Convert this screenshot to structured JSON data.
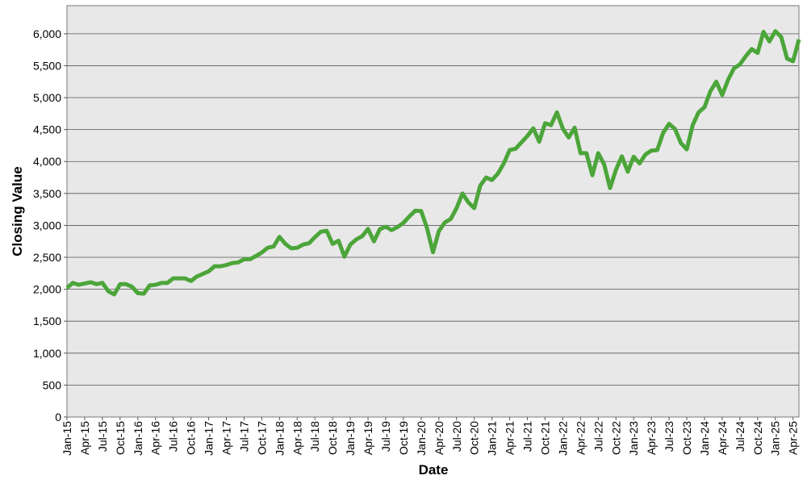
{
  "chart_data": {
    "type": "line",
    "x_label": "Date",
    "y_label": "Closing Value",
    "x": [
      "Jan-15",
      "Feb-15",
      "Mar-15",
      "Apr-15",
      "May-15",
      "Jun-15",
      "Jul-15",
      "Aug-15",
      "Sep-15",
      "Oct-15",
      "Nov-15",
      "Dec-15",
      "Jan-16",
      "Feb-16",
      "Mar-16",
      "Apr-16",
      "May-16",
      "Jun-16",
      "Jul-16",
      "Aug-16",
      "Sep-16",
      "Oct-16",
      "Nov-16",
      "Dec-16",
      "Jan-17",
      "Feb-17",
      "Mar-17",
      "Apr-17",
      "May-17",
      "Jun-17",
      "Jul-17",
      "Aug-17",
      "Sep-17",
      "Oct-17",
      "Nov-17",
      "Dec-17",
      "Jan-18",
      "Feb-18",
      "Mar-18",
      "Apr-18",
      "May-18",
      "Jun-18",
      "Jul-18",
      "Aug-18",
      "Sep-18",
      "Oct-18",
      "Nov-18",
      "Dec-18",
      "Jan-19",
      "Feb-19",
      "Mar-19",
      "Apr-19",
      "May-19",
      "Jun-19",
      "Jul-19",
      "Aug-19",
      "Sep-19",
      "Oct-19",
      "Nov-19",
      "Dec-19",
      "Jan-20",
      "Feb-20",
      "Mar-20",
      "Apr-20",
      "May-20",
      "Jun-20",
      "Jul-20",
      "Aug-20",
      "Sep-20",
      "Oct-20",
      "Nov-20",
      "Dec-20",
      "Jan-21",
      "Feb-21",
      "Mar-21",
      "Apr-21",
      "May-21",
      "Jun-21",
      "Jul-21",
      "Aug-21",
      "Sep-21",
      "Oct-21",
      "Nov-21",
      "Dec-21",
      "Jan-22",
      "Feb-22",
      "Mar-22",
      "Apr-22",
      "May-22",
      "Jun-22",
      "Jul-22",
      "Aug-22",
      "Sep-22",
      "Oct-22",
      "Nov-22",
      "Dec-22",
      "Jan-23",
      "Feb-23",
      "Mar-23",
      "Apr-23",
      "May-23",
      "Jun-23",
      "Jul-23",
      "Aug-23",
      "Sep-23",
      "Oct-23",
      "Nov-23",
      "Dec-23",
      "Jan-24",
      "Feb-24",
      "Mar-24",
      "Apr-24",
      "May-24",
      "Jun-24",
      "Jul-24",
      "Aug-24",
      "Sep-24",
      "Oct-24",
      "Nov-24",
      "Dec-24",
      "Jan-25",
      "Feb-25",
      "Mar-25",
      "Apr-25",
      "May-25"
    ],
    "values": [
      2020,
      2100,
      2070,
      2090,
      2110,
      2080,
      2100,
      1970,
      1920,
      2080,
      2080,
      2040,
      1940,
      1930,
      2060,
      2070,
      2100,
      2100,
      2170,
      2170,
      2170,
      2130,
      2200,
      2240,
      2280,
      2360,
      2360,
      2380,
      2410,
      2420,
      2470,
      2470,
      2520,
      2575,
      2650,
      2670,
      2820,
      2710,
      2640,
      2650,
      2700,
      2720,
      2815,
      2900,
      2915,
      2710,
      2760,
      2510,
      2700,
      2780,
      2830,
      2945,
      2750,
      2940,
      2980,
      2925,
      2975,
      3040,
      3140,
      3230,
      3225,
      2955,
      2580,
      2910,
      3045,
      3100,
      3270,
      3500,
      3360,
      3270,
      3620,
      3750,
      3710,
      3810,
      3970,
      4180,
      4200,
      4300,
      4400,
      4520,
      4310,
      4600,
      4570,
      4770,
      4515,
      4375,
      4530,
      4130,
      4130,
      3785,
      4130,
      3955,
      3585,
      3870,
      4080,
      3840,
      4075,
      3970,
      4110,
      4170,
      4180,
      4450,
      4590,
      4510,
      4290,
      4190,
      4570,
      4770,
      4850,
      5100,
      5250,
      5040,
      5280,
      5460,
      5520,
      5650,
      5760,
      5700,
      6030,
      5880,
      6040,
      5950,
      5610,
      5570,
      5910
    ],
    "color": "#4ca53a",
    "xticks": [
      "Jan-15",
      "Apr-15",
      "Jul-15",
      "Oct-15",
      "Jan-16",
      "Apr-16",
      "Jul-16",
      "Oct-16",
      "Jan-17",
      "Apr-17",
      "Jul-17",
      "Oct-17",
      "Jan-18",
      "Apr-18",
      "Jul-18",
      "Oct-18",
      "Jan-19",
      "Apr-19",
      "Jul-19",
      "Oct-19",
      "Jan-20",
      "Apr-20",
      "Jul-20",
      "Oct-20",
      "Jan-21",
      "Apr-21",
      "Jul-21",
      "Oct-21",
      "Jan-22",
      "Apr-22",
      "Jul-22",
      "Oct-22",
      "Jan-23",
      "Apr-23",
      "Jul-23",
      "Oct-23",
      "Jan-24",
      "Apr-24",
      "Jul-24",
      "Oct-24",
      "Jan-25",
      "Apr-25"
    ],
    "ylim": [
      0,
      6440
    ],
    "yticks": [
      0,
      500,
      {
        "value": 1000,
        "label": "1,000"
      },
      {
        "value": 1500,
        "label": "1,500"
      },
      {
        "value": 2000,
        "label": "2,000"
      },
      {
        "value": 2500,
        "label": "2,500"
      },
      {
        "value": 3000,
        "label": "3,000"
      },
      {
        "value": 3500,
        "label": "3,500"
      },
      {
        "value": 4000,
        "label": "4,000"
      },
      {
        "value": 4500,
        "label": "4,500"
      },
      {
        "value": 5000,
        "label": "5,000"
      },
      {
        "value": 5500,
        "label": "5,500"
      },
      {
        "value": 6000,
        "label": "6,000"
      }
    ],
    "grid": true
  }
}
